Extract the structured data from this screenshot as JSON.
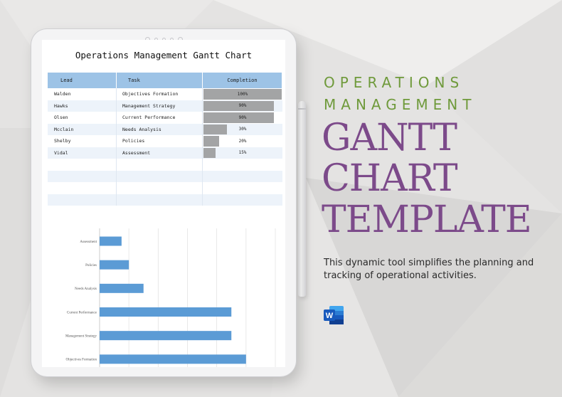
{
  "document": {
    "title": "Operations Management Gantt Chart",
    "table": {
      "headers": [
        "Lead",
        "Task",
        "Completion"
      ],
      "rows": [
        {
          "lead": "Walden",
          "task": "Objectives Formation",
          "completion": "100%",
          "pct": 100
        },
        {
          "lead": "Hawks",
          "task": "Management Strategy",
          "completion": "90%",
          "pct": 90
        },
        {
          "lead": "Olsen",
          "task": "Current Performance",
          "completion": "90%",
          "pct": 90
        },
        {
          "lead": "Mcclain",
          "task": "Needs Analysis",
          "completion": "30%",
          "pct": 30
        },
        {
          "lead": "Shelby",
          "task": "Policies",
          "completion": "20%",
          "pct": 20
        },
        {
          "lead": "Vidal",
          "task": "Assessment",
          "completion": "15%",
          "pct": 15
        }
      ],
      "empty_rows": 4
    }
  },
  "chart_data": {
    "type": "bar",
    "orientation": "horizontal",
    "categories": [
      "Assessment",
      "Policies",
      "Needs Analysis",
      "Current Performance",
      "Management Strategy",
      "Objectives Formation"
    ],
    "values": [
      15,
      20,
      30,
      90,
      90,
      100
    ],
    "xlim": [
      0,
      120
    ],
    "grid": true,
    "bar_color": "#5b9bd5"
  },
  "promo": {
    "subtitle_line1": "OPERATIONS",
    "subtitle_line2": "MANAGEMENT",
    "title_line1": "GANTT",
    "title_line2": "CHART",
    "title_line3": "TEMPLATE",
    "description": "This dynamic tool simplifies the planning and tracking of operational activities.",
    "app_icon": "word-icon",
    "subtitle_color": "#6f9a3b",
    "title_color": "#7c4a8a"
  }
}
